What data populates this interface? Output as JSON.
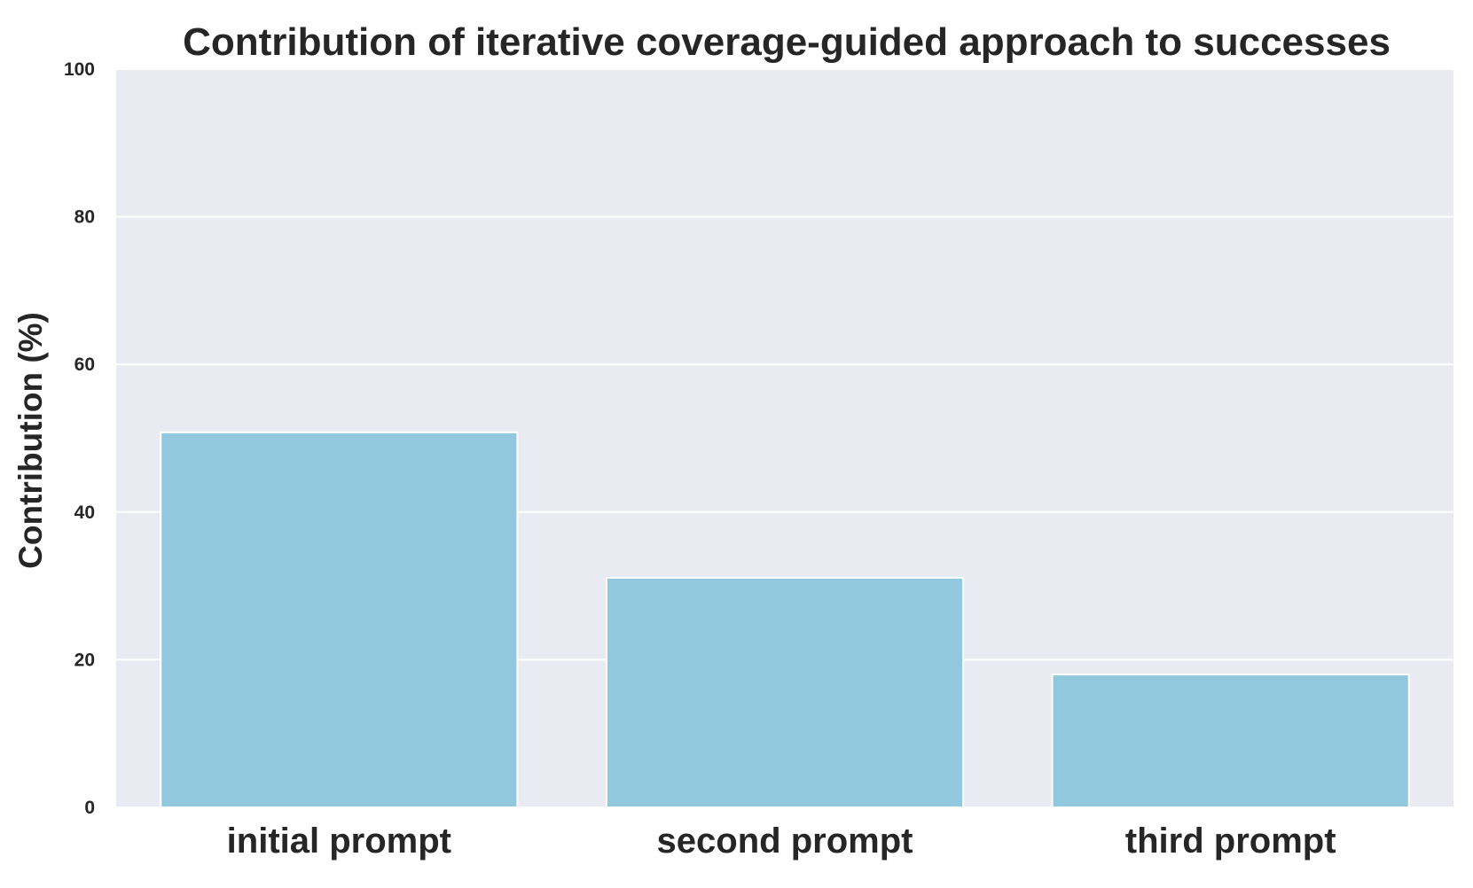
{
  "chart_data": {
    "type": "bar",
    "title": "Contribution of iterative coverage-guided approach to successes",
    "xlabel": "",
    "ylabel": "Contribution (%)",
    "categories": [
      "initial prompt",
      "second prompt",
      "third prompt"
    ],
    "values": [
      50.8,
      31.1,
      18.0
    ],
    "ylim": [
      0,
      100
    ],
    "yticks": [
      "0",
      "20",
      "40",
      "60",
      "80",
      "100"
    ],
    "grid": true,
    "legend": "none"
  },
  "colors": {
    "bar": "#92C8DE",
    "plot_background": "#EAEAF2",
    "grid": "#FFFFFF",
    "text": "#262626"
  }
}
